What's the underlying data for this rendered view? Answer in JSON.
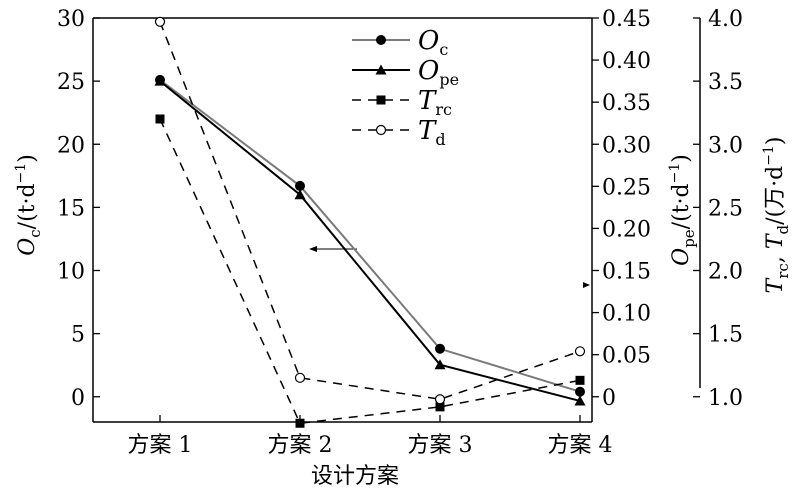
{
  "chart_data": {
    "type": "line",
    "categories": [
      "方案 1",
      "方案 2",
      "方案 3",
      "方案 4"
    ],
    "xlabel": "设计方案",
    "axes": {
      "left": {
        "label_sym": "O",
        "label_sub": "c",
        "label_unit": "/(t·d",
        "label_sup": "−1",
        "label_end": ")",
        "ylim": [
          -2,
          30
        ],
        "ticks": [
          0,
          5,
          10,
          15,
          20,
          25,
          30
        ],
        "tick_labels": [
          "0",
          "5",
          "10",
          "15",
          "20",
          "25",
          "30"
        ]
      },
      "right1": {
        "label_sym": "O",
        "label_sub": "pe",
        "label_unit": "/(t·d",
        "label_sup": "−1",
        "label_end": ")",
        "ylim": [
          -0.03,
          0.45
        ],
        "ticks": [
          0,
          0.05,
          0.1,
          0.15,
          0.2,
          0.25,
          0.3,
          0.35,
          0.4,
          0.45
        ],
        "tick_labels": [
          "0",
          "0.05",
          "0.10",
          "0.15",
          "0.20",
          "0.25",
          "0.30",
          "0.35",
          "0.40",
          "0.45"
        ]
      },
      "right2": {
        "label_sym1": "T",
        "label_sub1": "rc",
        "label_sep": ", ",
        "label_sym2": "T",
        "label_sub2": "d",
        "label_unit": "/(万·d",
        "label_sup": "−1",
        "label_end": ")",
        "ylim": [
          0.8,
          4.0
        ],
        "ticks": [
          1.0,
          1.5,
          2.0,
          2.5,
          3.0,
          3.5,
          4.0
        ],
        "tick_labels": [
          "1.0",
          "1.5",
          "2.0",
          "2.5",
          "3.0",
          "3.5",
          "4.0"
        ]
      }
    },
    "series": [
      {
        "name": "O",
        "sub": "c",
        "axis": "left",
        "values": [
          25.1,
          16.7,
          3.8,
          0.4
        ],
        "marker": "circle-filled",
        "dash": false,
        "color": "#7a7a7a"
      },
      {
        "name": "O",
        "sub": "pe",
        "axis": "right1",
        "values": [
          0.375,
          0.24,
          0.038,
          -0.005
        ],
        "marker": "triangle-filled",
        "dash": false,
        "color": "#000000"
      },
      {
        "name": "T",
        "sub": "rc",
        "axis": "right2",
        "values": [
          3.2,
          0.79,
          0.92,
          1.13
        ],
        "marker": "square-filled",
        "dash": true,
        "color": "#000000"
      },
      {
        "name": "T",
        "sub": "d",
        "axis": "right2",
        "values": [
          3.97,
          1.15,
          0.98,
          1.36
        ],
        "marker": "circle-open",
        "dash": true,
        "color": "#000000"
      }
    ],
    "legend": "top-center",
    "grid": false
  }
}
